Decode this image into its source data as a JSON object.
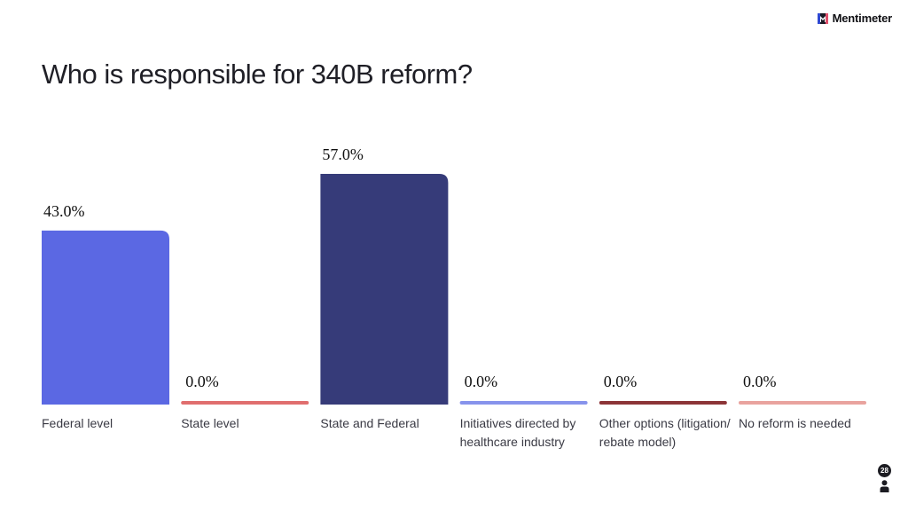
{
  "brand": {
    "name": "Mentimeter",
    "logo_icon": "mentimeter-logo-icon"
  },
  "question": {
    "title": "Who is responsible for 340B reform?"
  },
  "participants": {
    "count": "28",
    "icon": "person-icon"
  },
  "chart_data": {
    "type": "bar",
    "title": "Who is responsible for 340B reform?",
    "categories": [
      "Federal level",
      "State level",
      "State and Federal",
      "Initiatives directed by healthcare industry",
      "Other options (litigation/ rebate model)",
      "No reform is needed"
    ],
    "values": [
      43.0,
      0.0,
      57.0,
      0.0,
      0.0,
      0.0
    ],
    "value_labels": [
      "43.0%",
      "0.0%",
      "57.0%",
      "0.0%",
      "0.0%",
      "0.0%"
    ],
    "colors": [
      "#5b68e3",
      "#e06e6e",
      "#363b79",
      "#8793ec",
      "#8c3437",
      "#e9a39e"
    ],
    "ylim": [
      0,
      57
    ],
    "unit": "%",
    "grid": false,
    "legend": "none"
  }
}
